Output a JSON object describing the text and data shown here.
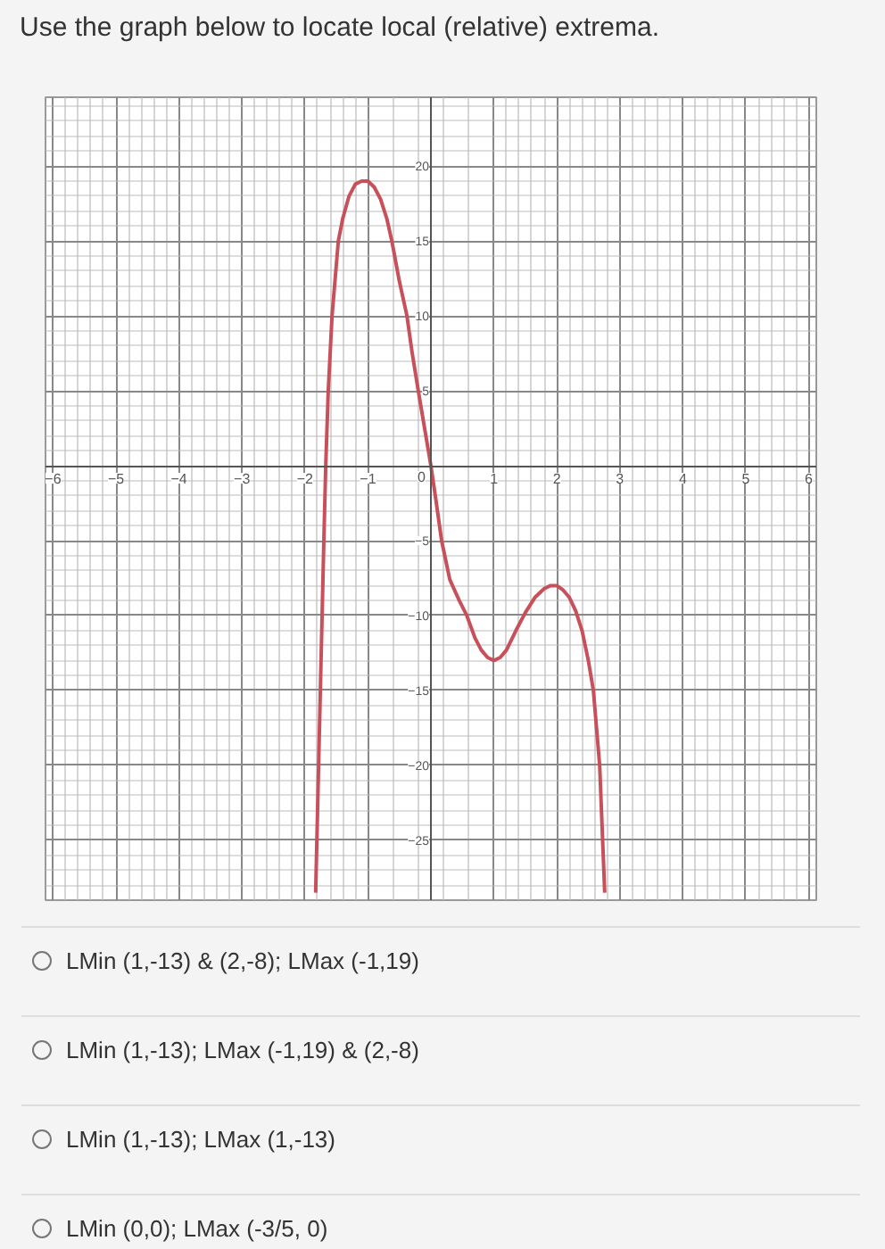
{
  "chart_data": {
    "type": "line",
    "title": "Use the graph below to locate local (relative) extrema.",
    "annotations": [
      {
        "text": "0",
        "x": 0,
        "y": 0
      },
      "LMin (1,-13) & (2,-8); LMax (-1,19)",
      "LMin (1,-13); LMax (-1,19) & (2,-8)",
      "LMin (1,-13); LMax (1,-13)",
      "LMin (0,0); LMax (-3/5, 0)"
    ],
    "series": [
      {
        "color": "#c8505a",
        "x": [
          -1.83,
          -1.75,
          -1.7,
          -1.67,
          -1.63,
          -1.57,
          -1.47,
          -1.4,
          -1.3,
          -1.2,
          -1.1,
          -1,
          -0.9,
          -0.8,
          -0.7,
          -0.62,
          -0.5,
          -0.38,
          -0.3,
          -0.2,
          -0.1,
          0,
          0.07,
          0.17,
          0.3,
          0.45,
          0.57,
          0.7,
          0.8,
          0.9,
          1,
          1.1,
          1.2,
          1.35,
          1.5,
          1.65,
          1.8,
          1.9,
          2,
          2.1,
          2.2,
          2.3,
          2.4,
          2.5,
          2.58,
          2.68,
          2.76
        ],
        "values": [
          -28.5,
          -14,
          -5,
          0,
          5,
          10,
          15,
          16.5,
          18,
          18.8,
          19,
          19,
          18.6,
          17.8,
          16.5,
          15,
          12.3,
          10,
          7.6,
          5,
          2.5,
          0,
          -2,
          -5,
          -7.6,
          -9,
          -10,
          -11.5,
          -12.3,
          -12.8,
          -13,
          -12.8,
          -12.3,
          -11,
          -9.8,
          -8.8,
          -8.2,
          -8,
          -8,
          -8.3,
          -8.8,
          -9.7,
          -11,
          -13,
          -15,
          -20,
          -28.5
        ]
      }
    ],
    "xlim": [
      -6.12,
      6.12
    ],
    "ylim": [
      -29,
      24.6
    ],
    "xticks": [
      -6,
      -5,
      -4,
      -3,
      -2,
      -1,
      1,
      2,
      3,
      4,
      5,
      6
    ],
    "yticks": [
      -25,
      -20,
      -15,
      -10,
      -5,
      5,
      10,
      15,
      20
    ],
    "grid": true,
    "marker": "none",
    "line_style": "solid"
  }
}
